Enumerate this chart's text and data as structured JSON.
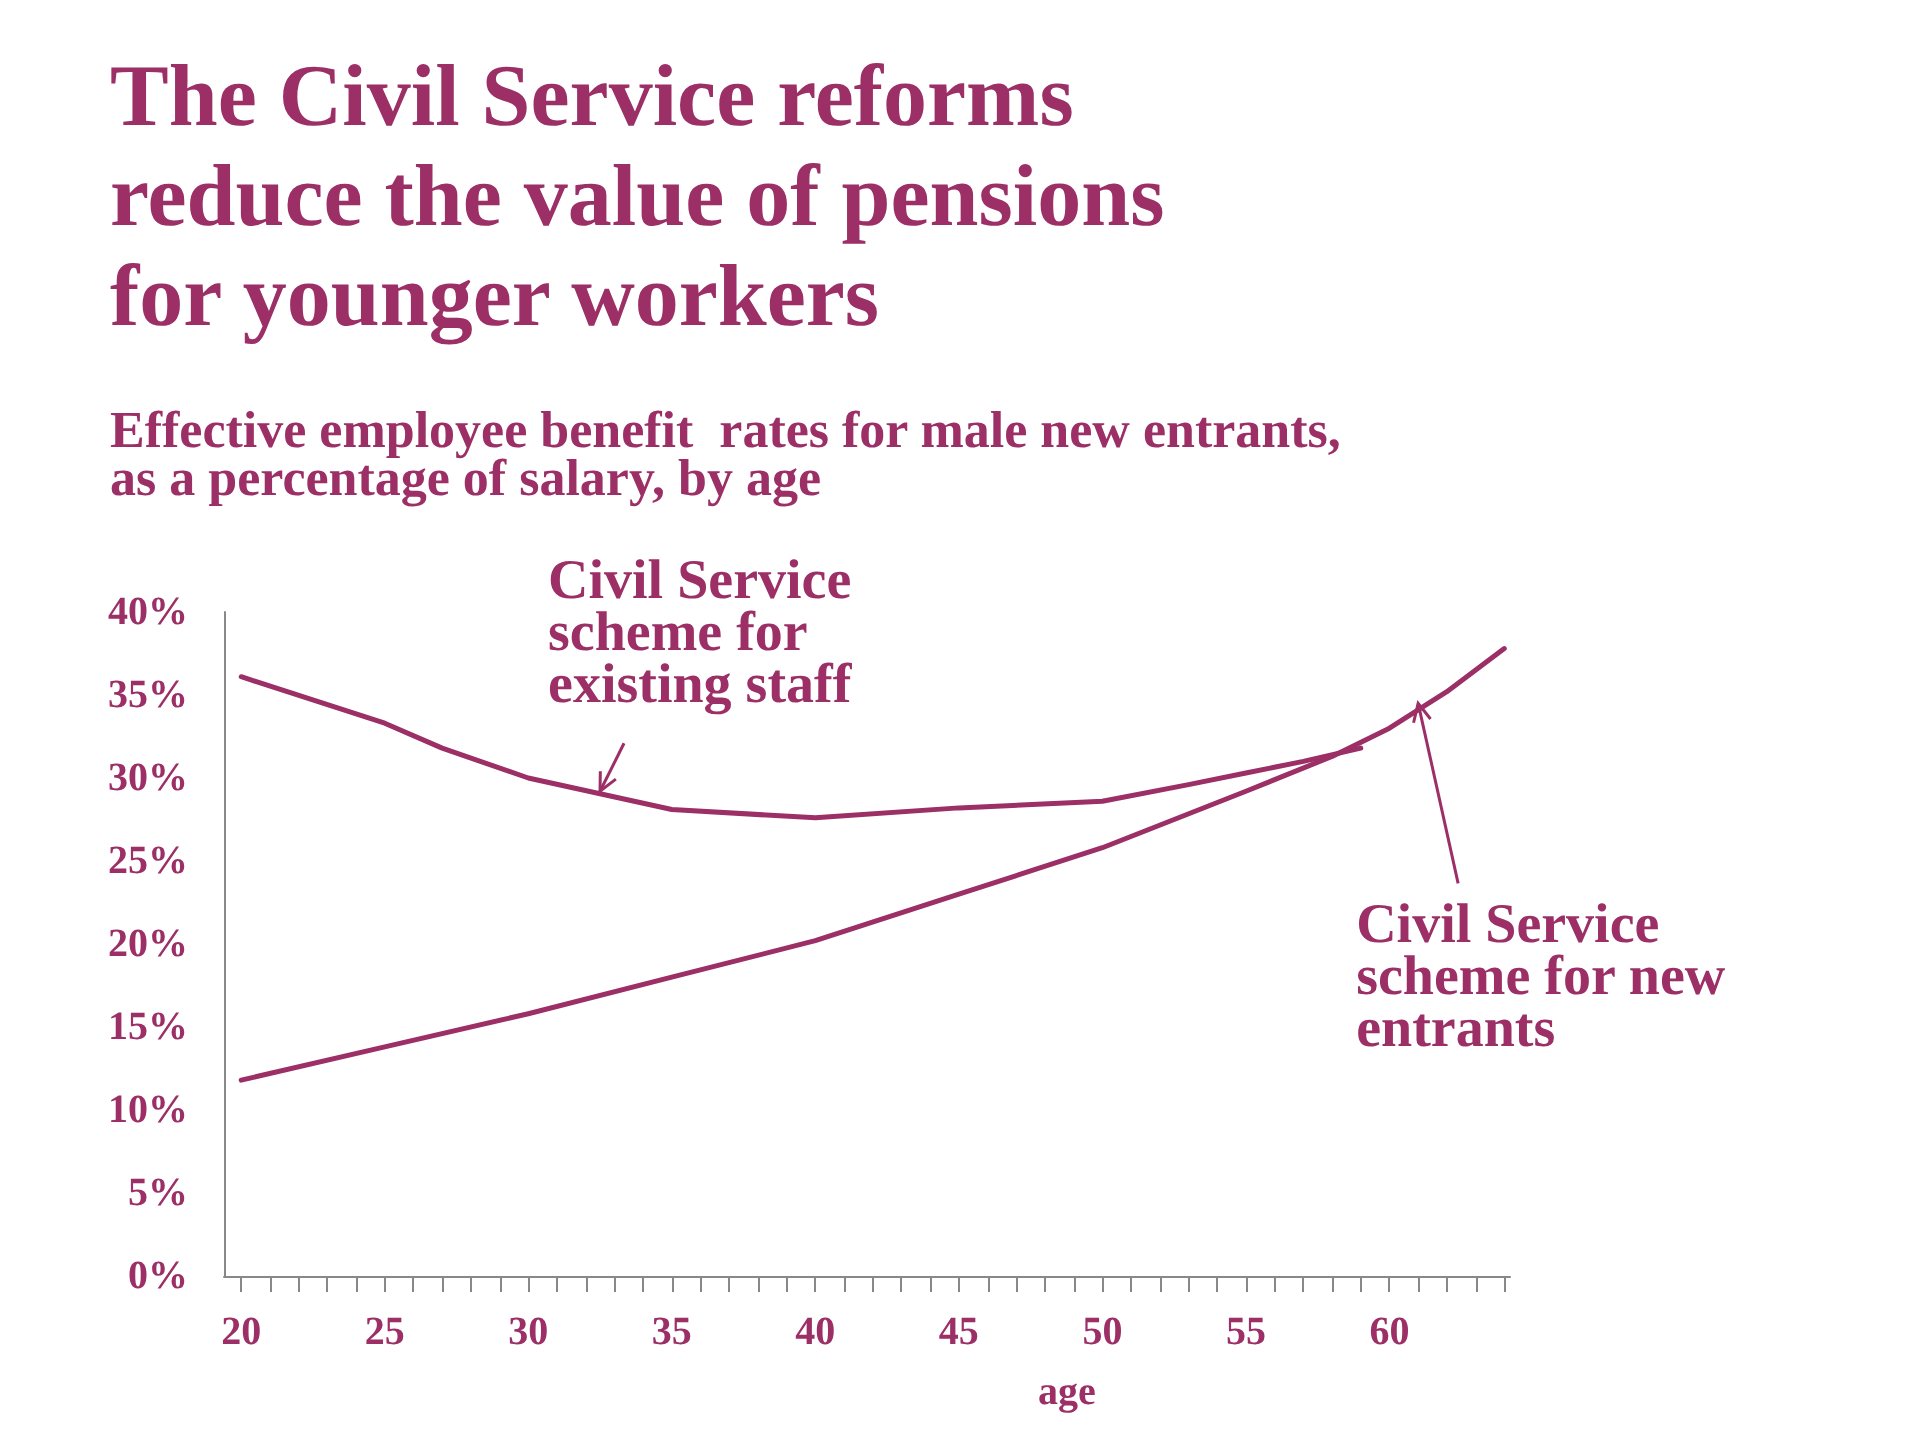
{
  "chart_data": {
    "type": "line",
    "title": "The Civil Service reforms\nreduce the value of pensions\nfor younger workers",
    "subtitle": "Effective employee benefit  rates for male new entrants,\nas a percentage of salary, by age",
    "xlabel": "age",
    "grid": false,
    "marker": "none",
    "line_style": "solid",
    "xlim": [
      19.4,
      64.2
    ],
    "xticks": [
      {
        "value": 20,
        "label": "20"
      },
      {
        "value": 21,
        "label": null
      },
      {
        "value": 22,
        "label": null
      },
      {
        "value": 23,
        "label": null
      },
      {
        "value": 24,
        "label": null
      },
      {
        "value": 25,
        "label": "25"
      },
      {
        "value": 26,
        "label": null
      },
      {
        "value": 27,
        "label": null
      },
      {
        "value": 28,
        "label": null
      },
      {
        "value": 29,
        "label": null
      },
      {
        "value": 30,
        "label": "30"
      },
      {
        "value": 31,
        "label": null
      },
      {
        "value": 32,
        "label": null
      },
      {
        "value": 33,
        "label": null
      },
      {
        "value": 34,
        "label": null
      },
      {
        "value": 35,
        "label": "35"
      },
      {
        "value": 36,
        "label": null
      },
      {
        "value": 37,
        "label": null
      },
      {
        "value": 38,
        "label": null
      },
      {
        "value": 39,
        "label": null
      },
      {
        "value": 40,
        "label": "40"
      },
      {
        "value": 41,
        "label": null
      },
      {
        "value": 42,
        "label": null
      },
      {
        "value": 43,
        "label": null
      },
      {
        "value": 44,
        "label": null
      },
      {
        "value": 45,
        "label": "45"
      },
      {
        "value": 46,
        "label": null
      },
      {
        "value": 47,
        "label": null
      },
      {
        "value": 48,
        "label": null
      },
      {
        "value": 49,
        "label": null
      },
      {
        "value": 50,
        "label": "50"
      },
      {
        "value": 51,
        "label": null
      },
      {
        "value": 52,
        "label": null
      },
      {
        "value": 53,
        "label": null
      },
      {
        "value": 54,
        "label": null
      },
      {
        "value": 55,
        "label": "55"
      },
      {
        "value": 56,
        "label": null
      },
      {
        "value": 57,
        "label": null
      },
      {
        "value": 58,
        "label": null
      },
      {
        "value": 59,
        "label": null
      },
      {
        "value": 60,
        "label": "60"
      },
      {
        "value": 61,
        "label": null
      },
      {
        "value": 62,
        "label": null
      },
      {
        "value": 63,
        "label": null
      },
      {
        "value": 64,
        "label": null
      }
    ],
    "ylim": [
      0,
      40
    ],
    "yticks": [
      {
        "value": 0,
        "label": "0%"
      },
      {
        "value": 5,
        "label": "5%"
      },
      {
        "value": 10,
        "label": "10%"
      },
      {
        "value": 15,
        "label": "15%"
      },
      {
        "value": 20,
        "label": "20%"
      },
      {
        "value": 25,
        "label": "25%"
      },
      {
        "value": 30,
        "label": "30%"
      },
      {
        "value": 35,
        "label": "35%"
      },
      {
        "value": 40,
        "label": "40%"
      }
    ],
    "series": [
      {
        "color": "#9b2f66",
        "x": [
          20,
          25,
          27,
          30,
          35,
          40,
          45,
          50,
          53,
          55,
          57,
          59
        ],
        "values": [
          36.1,
          33.3,
          31.8,
          30.0,
          28.1,
          27.6,
          28.2,
          28.6,
          29.6,
          30.3,
          31.0,
          31.8
        ]
      },
      {
        "color": "#9b2f66",
        "x": [
          20,
          25,
          30,
          35,
          40,
          45,
          50,
          55,
          58,
          60,
          62,
          64
        ],
        "values": [
          11.8,
          13.8,
          15.8,
          18.0,
          20.2,
          23.0,
          25.8,
          29.2,
          31.3,
          33.0,
          35.2,
          37.8
        ]
      }
    ],
    "annotations": [
      {
        "text": "Civil Service\nscheme for\nexisting staff",
        "x": 32.5,
        "y": 29.2
      },
      {
        "text": "Civil Service\nscheme for new\nentrants",
        "x": 61,
        "y": 34.5
      }
    ]
  }
}
